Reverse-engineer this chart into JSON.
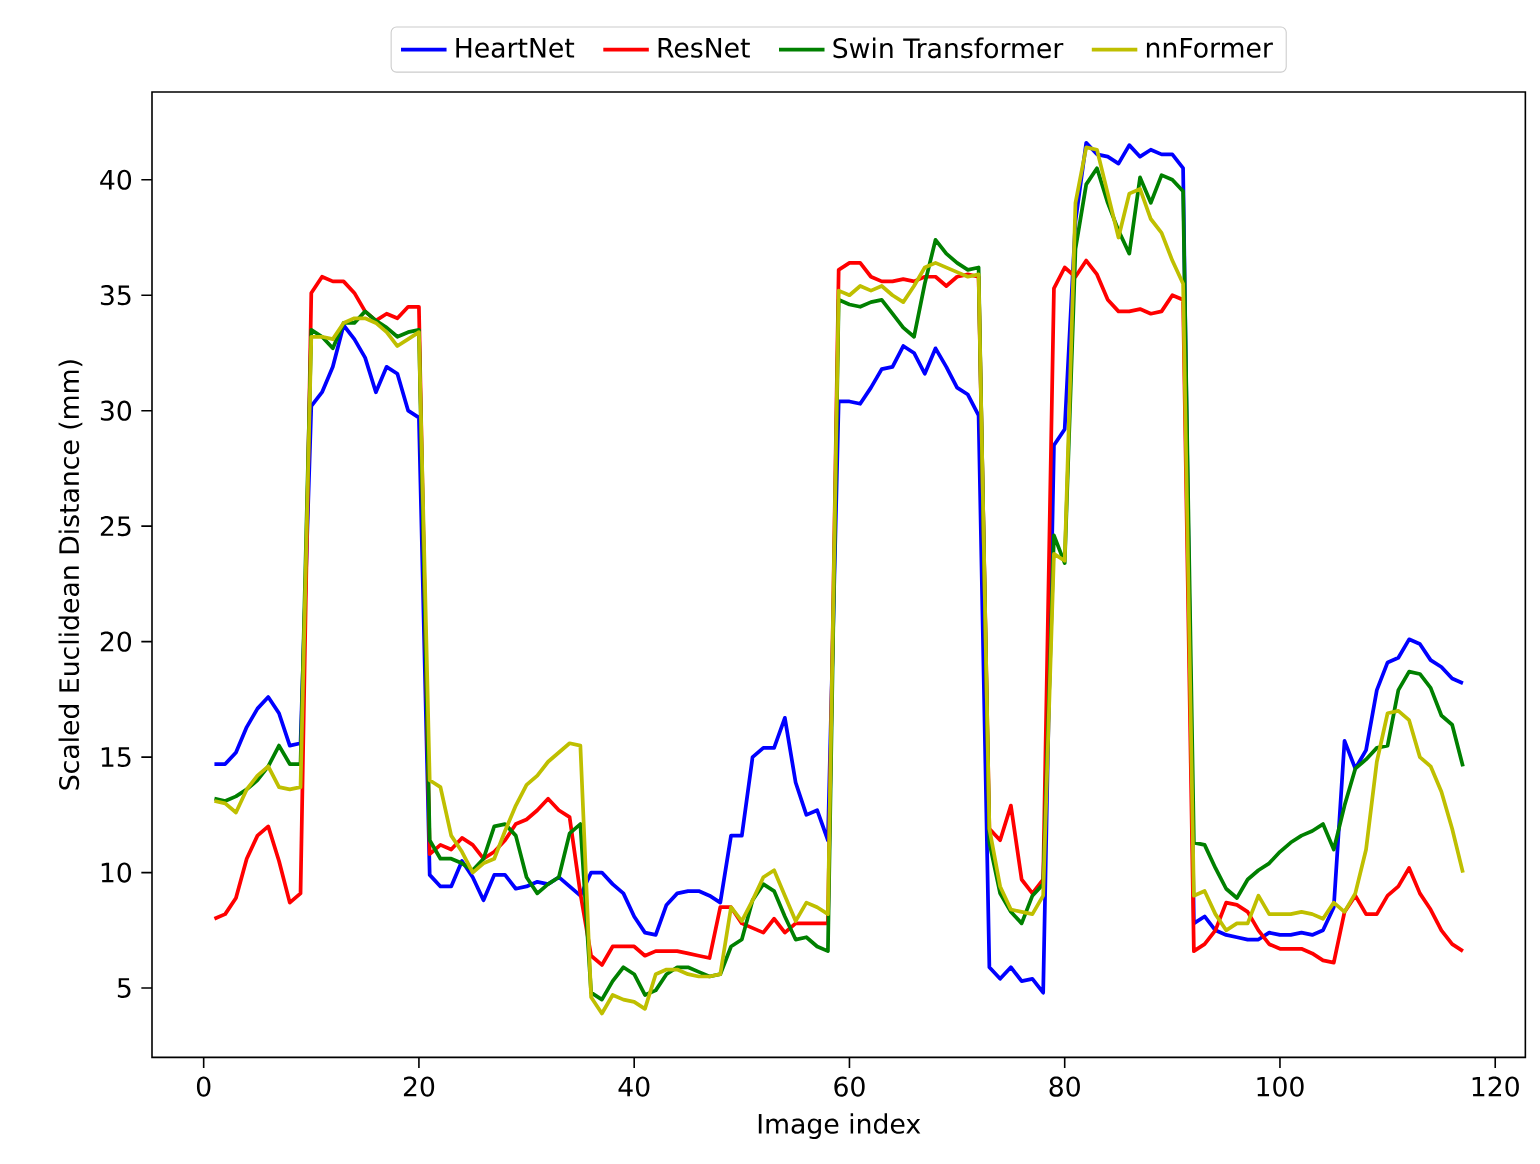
{
  "chart_data": {
    "type": "line",
    "xlabel": "Image index",
    "ylabel": "Scaled Euclidean Distance (mm)",
    "x": [
      1,
      2,
      3,
      4,
      5,
      6,
      7,
      8,
      9,
      10,
      11,
      12,
      13,
      14,
      15,
      16,
      17,
      18,
      19,
      20,
      21,
      22,
      23,
      24,
      25,
      26,
      27,
      28,
      29,
      30,
      31,
      32,
      33,
      34,
      35,
      36,
      37,
      38,
      39,
      40,
      41,
      42,
      43,
      44,
      45,
      46,
      47,
      48,
      49,
      50,
      51,
      52,
      53,
      54,
      55,
      56,
      57,
      58,
      59,
      60,
      61,
      62,
      63,
      64,
      65,
      66,
      67,
      68,
      69,
      70,
      71,
      72,
      73,
      74,
      75,
      76,
      77,
      78,
      79,
      80,
      81,
      82,
      83,
      84,
      85,
      86,
      87,
      88,
      89,
      90,
      91,
      92,
      93,
      94,
      95,
      96,
      97,
      98,
      99,
      100,
      101,
      102,
      103,
      104,
      105,
      106,
      107,
      108,
      109,
      110,
      111,
      112,
      113,
      114,
      115,
      116,
      117
    ],
    "series": [
      {
        "name": "HeartNet",
        "color": "#0000ff",
        "values": [
          14.7,
          14.7,
          15.2,
          16.3,
          17.1,
          17.6,
          16.9,
          15.5,
          15.6,
          30.2,
          30.8,
          31.9,
          33.7,
          33.1,
          32.3,
          30.8,
          31.9,
          31.6,
          30.0,
          29.7,
          9.9,
          9.4,
          9.4,
          10.5,
          9.8,
          8.8,
          9.9,
          9.9,
          9.3,
          9.4,
          9.6,
          9.5,
          9.8,
          9.4,
          9.0,
          10.0,
          10.0,
          9.5,
          9.1,
          8.1,
          7.4,
          7.3,
          8.6,
          9.1,
          9.2,
          9.2,
          9.0,
          8.7,
          11.6,
          11.6,
          15.0,
          15.4,
          15.4,
          16.7,
          13.9,
          12.5,
          12.7,
          11.4,
          30.4,
          30.4,
          30.3,
          31.0,
          31.8,
          31.9,
          32.8,
          32.5,
          31.6,
          32.7,
          31.9,
          31.0,
          30.7,
          29.8,
          5.9,
          5.4,
          5.9,
          5.3,
          5.4,
          4.8,
          28.5,
          29.2,
          38.2,
          41.6,
          41.1,
          41.0,
          40.7,
          41.5,
          41.0,
          41.3,
          41.1,
          41.1,
          40.5,
          7.8,
          8.1,
          7.5,
          7.3,
          7.2,
          7.1,
          7.1,
          7.4,
          7.3,
          7.3,
          7.4,
          7.3,
          7.5,
          8.5,
          15.7,
          14.5,
          15.3,
          17.9,
          19.1,
          19.3,
          20.1,
          19.9,
          19.2,
          18.9,
          18.4,
          18.2
        ]
      },
      {
        "name": "ResNet",
        "color": "#ff0000",
        "values": [
          8.0,
          8.2,
          8.9,
          10.6,
          11.6,
          12.0,
          10.5,
          8.7,
          9.1,
          35.1,
          35.8,
          35.6,
          35.6,
          35.1,
          34.3,
          33.9,
          34.2,
          34.0,
          34.5,
          34.5,
          10.8,
          11.2,
          11.0,
          11.5,
          11.2,
          10.6,
          10.9,
          11.4,
          12.1,
          12.3,
          12.7,
          13.2,
          12.7,
          12.4,
          9.1,
          6.4,
          6.0,
          6.8,
          6.8,
          6.8,
          6.4,
          6.6,
          6.6,
          6.6,
          6.5,
          6.4,
          6.3,
          8.5,
          8.5,
          7.8,
          7.6,
          7.4,
          8.0,
          7.4,
          7.8,
          7.8,
          7.8,
          7.8,
          36.1,
          36.4,
          36.4,
          35.8,
          35.6,
          35.6,
          35.7,
          35.6,
          35.8,
          35.8,
          35.4,
          35.8,
          35.9,
          35.8,
          11.9,
          11.4,
          12.9,
          9.7,
          9.1,
          9.7,
          35.3,
          36.2,
          35.8,
          36.5,
          35.9,
          34.8,
          34.3,
          34.3,
          34.4,
          34.2,
          34.3,
          35.0,
          34.8,
          6.6,
          6.9,
          7.5,
          8.7,
          8.6,
          8.3,
          7.5,
          6.9,
          6.7,
          6.7,
          6.7,
          6.5,
          6.2,
          6.1,
          8.3,
          9.0,
          8.2,
          8.2,
          9.0,
          9.4,
          10.2,
          9.1,
          8.4,
          7.5,
          6.9,
          6.6
        ]
      },
      {
        "name": "Swin Transformer",
        "color": "#008000",
        "values": [
          13.2,
          13.1,
          13.3,
          13.6,
          14.0,
          14.6,
          15.5,
          14.7,
          14.7,
          33.5,
          33.2,
          32.7,
          33.8,
          33.8,
          34.3,
          33.9,
          33.6,
          33.2,
          33.4,
          33.5,
          11.4,
          10.6,
          10.6,
          10.4,
          10.1,
          10.6,
          12.0,
          12.1,
          11.6,
          9.8,
          9.1,
          9.5,
          9.8,
          11.7,
          12.1,
          4.8,
          4.5,
          5.3,
          5.9,
          5.6,
          4.7,
          4.9,
          5.6,
          5.9,
          5.9,
          5.7,
          5.5,
          5.6,
          6.8,
          7.1,
          8.8,
          9.5,
          9.2,
          8.1,
          7.1,
          7.2,
          6.8,
          6.6,
          34.8,
          34.6,
          34.5,
          34.7,
          34.8,
          34.2,
          33.6,
          33.2,
          35.5,
          37.4,
          36.8,
          36.4,
          36.1,
          36.2,
          11.3,
          9.1,
          8.3,
          7.8,
          9.0,
          9.5,
          24.6,
          23.4,
          37.0,
          39.8,
          40.5,
          39.0,
          37.8,
          36.8,
          40.1,
          39.0,
          40.2,
          40.0,
          39.5,
          11.3,
          11.2,
          10.2,
          9.3,
          8.9,
          9.7,
          10.1,
          10.4,
          10.9,
          11.3,
          11.6,
          11.8,
          12.1,
          11.0,
          12.9,
          14.5,
          14.9,
          15.4,
          15.5,
          17.9,
          18.7,
          18.6,
          18.0,
          16.8,
          16.4,
          14.6
        ]
      },
      {
        "name": "nnFormer",
        "color": "#bfbf00",
        "values": [
          13.1,
          13.0,
          12.6,
          13.6,
          14.2,
          14.6,
          13.7,
          13.6,
          13.7,
          33.2,
          33.2,
          33.1,
          33.8,
          34.0,
          34.0,
          33.8,
          33.4,
          32.8,
          33.1,
          33.4,
          14.0,
          13.7,
          11.6,
          10.9,
          10.0,
          10.4,
          10.6,
          11.8,
          12.9,
          13.8,
          14.2,
          14.8,
          15.2,
          15.6,
          15.5,
          4.6,
          3.9,
          4.7,
          4.5,
          4.4,
          4.1,
          5.6,
          5.8,
          5.8,
          5.6,
          5.5,
          5.5,
          5.6,
          8.5,
          7.9,
          8.8,
          9.8,
          10.1,
          9.0,
          7.9,
          8.7,
          8.5,
          8.2,
          35.2,
          35.0,
          35.4,
          35.2,
          35.4,
          35.0,
          34.7,
          35.4,
          36.2,
          36.4,
          36.2,
          36.0,
          35.8,
          35.9,
          11.9,
          9.4,
          8.4,
          8.3,
          8.2,
          9.0,
          23.8,
          23.5,
          39.0,
          41.4,
          41.3,
          39.4,
          37.5,
          39.4,
          39.6,
          38.3,
          37.7,
          36.5,
          35.5,
          9.0,
          9.2,
          8.2,
          7.5,
          7.8,
          7.8,
          9.0,
          8.2,
          8.2,
          8.2,
          8.3,
          8.2,
          8.0,
          8.7,
          8.3,
          9.1,
          11.0,
          14.8,
          16.9,
          17.0,
          16.6,
          15.0,
          14.6,
          13.5,
          11.9,
          10.0
        ]
      }
    ],
    "xlim": [
      -4.8,
      122.8
    ],
    "ylim": [
      2.0,
      43.8
    ],
    "xticks": [
      0,
      20,
      40,
      60,
      80,
      100,
      120
    ],
    "yticks": [
      5,
      10,
      15,
      20,
      25,
      30,
      35,
      40
    ],
    "grid": false,
    "legend": "top",
    "marker": "none",
    "line_style": "solid"
  }
}
